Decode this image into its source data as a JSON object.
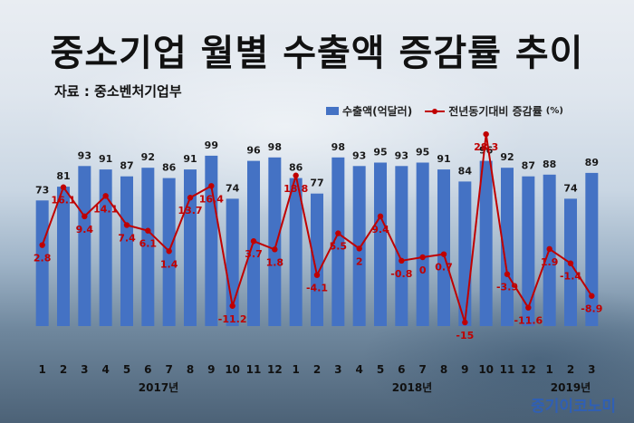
{
  "title": "중소기업 월별 수출액 증감률 추이",
  "source": "자료 : 중소벤처기업부",
  "legend": {
    "bar_label": "수출액(억달러)",
    "line_label": "전년동기대비 증감률",
    "line_unit": "(%)"
  },
  "watermark": "중기이코노미",
  "colors": {
    "bar": "#4472c4",
    "line": "#c00000",
    "bar_label": "#ffffff",
    "line_label": "#c00000"
  },
  "chart_data": {
    "type": "bar",
    "categories": [
      "1",
      "2",
      "3",
      "4",
      "5",
      "6",
      "7",
      "8",
      "9",
      "10",
      "11",
      "12",
      "1",
      "2",
      "3",
      "4",
      "5",
      "6",
      "7",
      "8",
      "9",
      "10",
      "11",
      "12",
      "1",
      "2",
      "3"
    ],
    "year_labels": [
      {
        "label": "2017년",
        "start_index": 0,
        "end_index": 11
      },
      {
        "label": "2018년",
        "start_index": 12,
        "end_index": 23
      },
      {
        "label": "2019년",
        "start_index": 24,
        "end_index": 26
      }
    ],
    "series": [
      {
        "name": "수출액(억달러)",
        "type": "bar",
        "values": [
          73,
          81,
          93,
          91,
          87,
          92,
          86,
          91,
          99,
          74,
          96,
          98,
          86,
          77,
          98,
          93,
          95,
          93,
          95,
          91,
          84,
          96,
          92,
          87,
          88,
          74,
          89
        ]
      },
      {
        "name": "전년동기대비 증감률",
        "type": "line",
        "values": [
          2.8,
          16.1,
          9.4,
          14.1,
          7.4,
          6.1,
          1.4,
          13.7,
          16.4,
          -11.2,
          3.7,
          1.8,
          18.8,
          -4.1,
          5.5,
          2,
          9.4,
          -0.8,
          0,
          0.7,
          -15,
          28.3,
          -3.9,
          -11.6,
          1.9,
          -1.4,
          -8.9
        ]
      }
    ],
    "ylim_bars": [
      0,
      100
    ],
    "ylim_line": [
      -20,
      30
    ]
  }
}
